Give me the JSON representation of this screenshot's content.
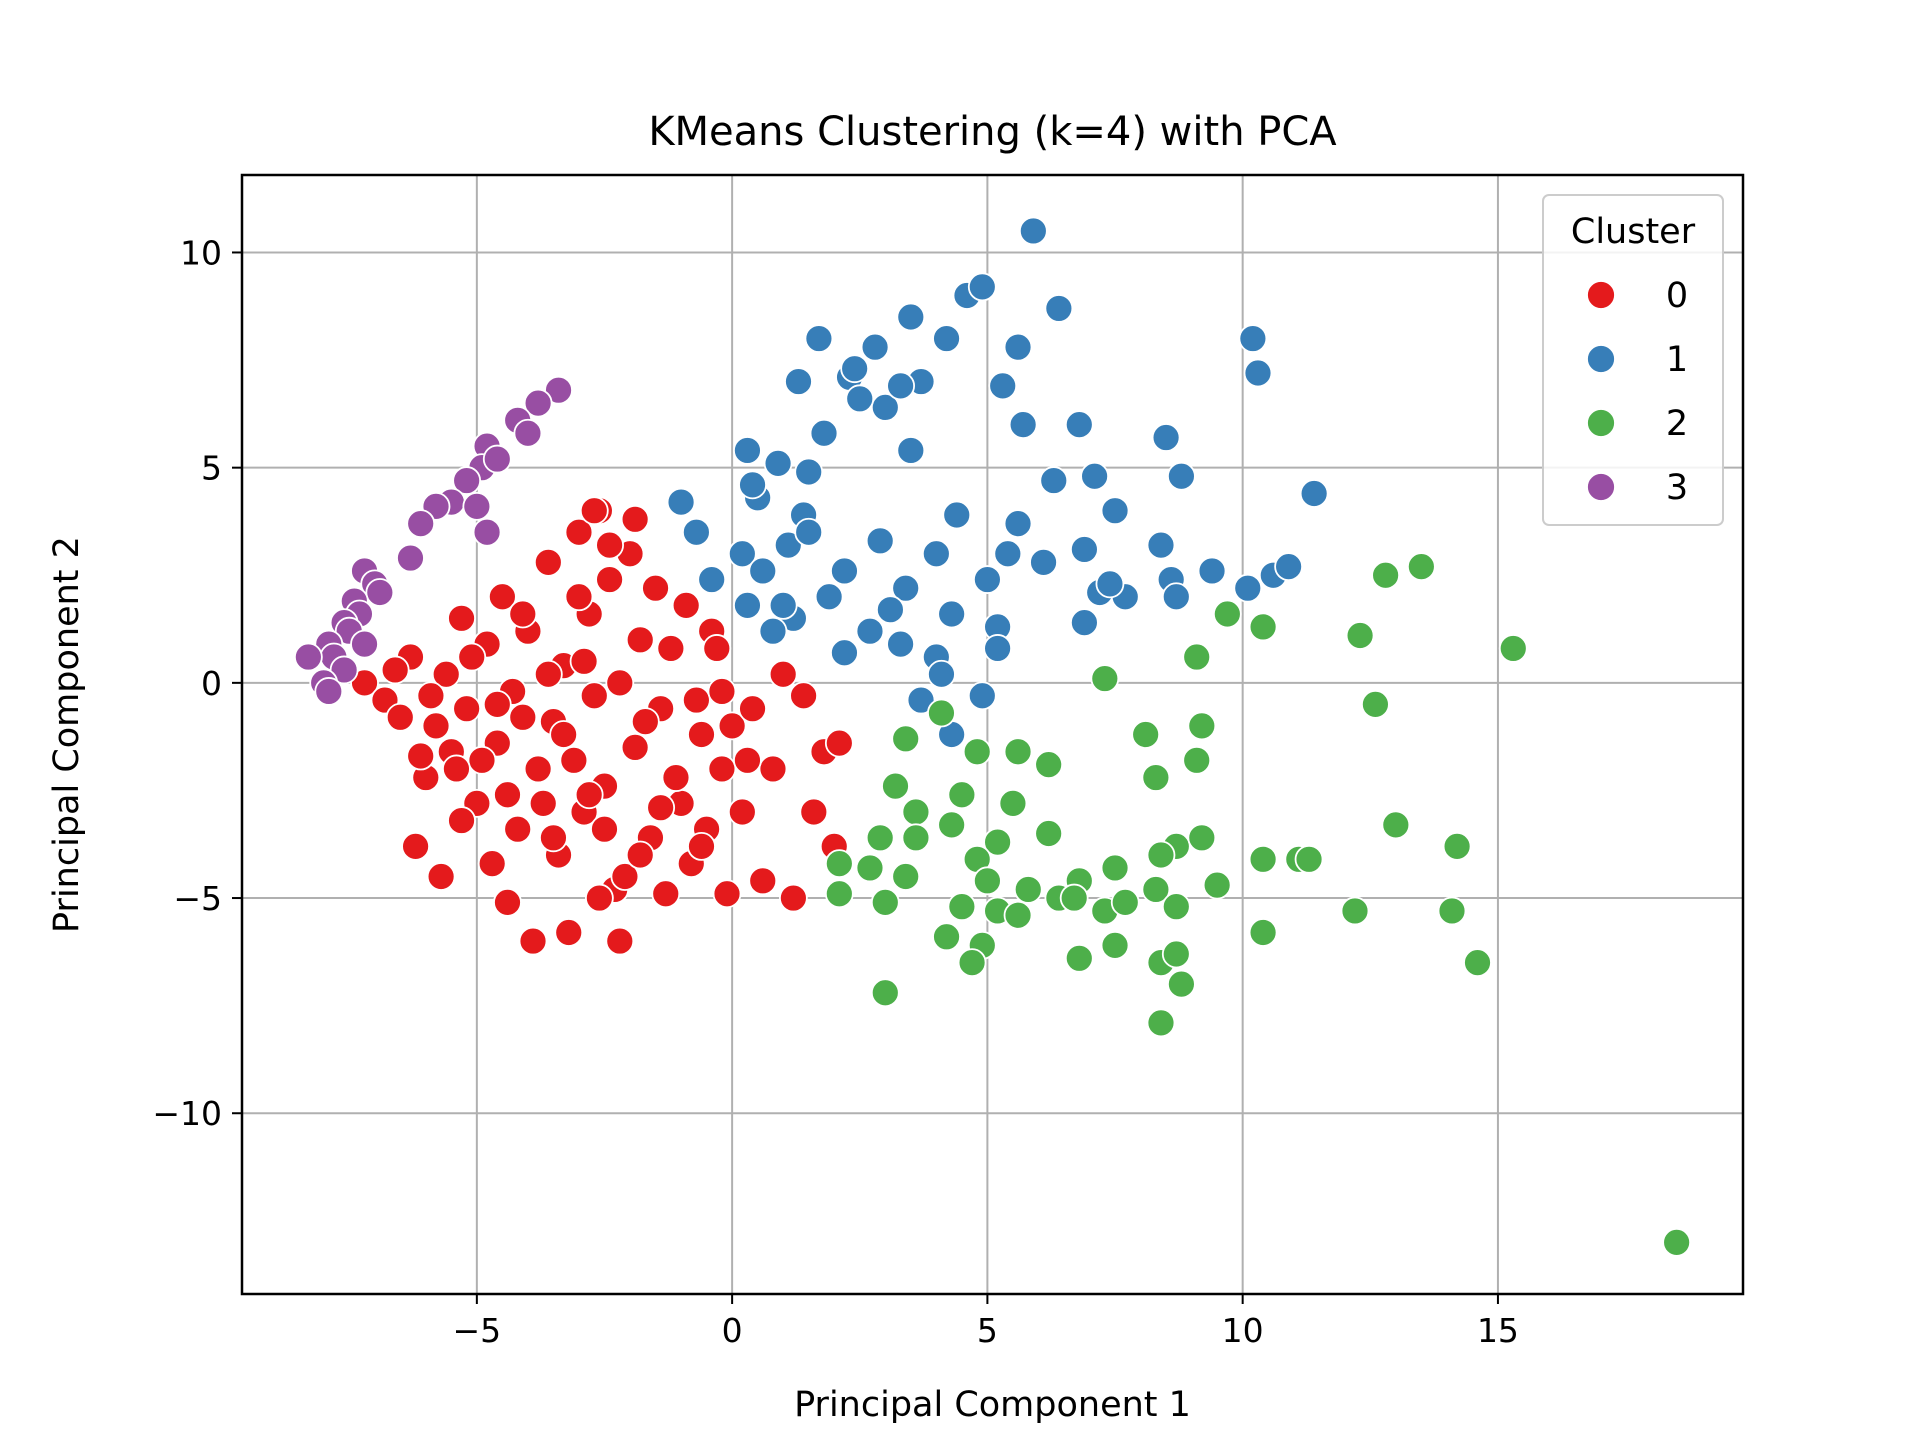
{
  "chart_data": {
    "type": "scatter",
    "title": "KMeans Clustering (k=4) with PCA",
    "xlabel": "Principal Component 1",
    "ylabel": "Principal Component 2",
    "xlim": [
      -9.6,
      19.8
    ],
    "ylim": [
      -14.2,
      11.8
    ],
    "xticks": [
      -5,
      0,
      5,
      10,
      15
    ],
    "yticks": [
      -10,
      -5,
      0,
      5,
      10
    ],
    "xtick_labels": [
      "−5",
      "0",
      "5",
      "10",
      "15"
    ],
    "ytick_labels": [
      "−10",
      "−5",
      "0",
      "5",
      "10"
    ],
    "grid": true,
    "legend": {
      "title": "Cluster",
      "placement": "top-right"
    },
    "series": [
      {
        "name": "0",
        "color": "#e41a1c",
        "points": [
          [
            -7.2,
            0.0
          ],
          [
            -6.8,
            -0.4
          ],
          [
            -6.5,
            -0.8
          ],
          [
            -6.3,
            0.6
          ],
          [
            -6.0,
            -2.2
          ],
          [
            -5.8,
            -1.0
          ],
          [
            -5.6,
            0.2
          ],
          [
            -5.5,
            -1.6
          ],
          [
            -5.3,
            1.5
          ],
          [
            -5.2,
            -0.6
          ],
          [
            -5.0,
            -2.8
          ],
          [
            -4.8,
            0.9
          ],
          [
            -4.6,
            -1.4
          ],
          [
            -4.5,
            2.0
          ],
          [
            -4.3,
            -0.2
          ],
          [
            -4.2,
            -3.4
          ],
          [
            -4.0,
            1.2
          ],
          [
            -3.8,
            -2.0
          ],
          [
            -3.6,
            2.8
          ],
          [
            -3.5,
            -0.9
          ],
          [
            -3.4,
            -4.0
          ],
          [
            -3.3,
            0.4
          ],
          [
            -3.1,
            -1.8
          ],
          [
            -3.0,
            3.5
          ],
          [
            -2.9,
            -3.0
          ],
          [
            -2.8,
            1.6
          ],
          [
            -2.7,
            -0.3
          ],
          [
            -2.6,
            4.0
          ],
          [
            -2.5,
            -2.4
          ],
          [
            -2.4,
            2.4
          ],
          [
            -2.3,
            -4.8
          ],
          [
            -2.2,
            0.0
          ],
          [
            -2.0,
            3.0
          ],
          [
            -1.9,
            -1.5
          ],
          [
            -1.8,
            1.0
          ],
          [
            -1.6,
            -3.6
          ],
          [
            -1.5,
            2.2
          ],
          [
            -1.4,
            -0.6
          ],
          [
            -1.2,
            0.8
          ],
          [
            -1.0,
            -2.8
          ],
          [
            -0.9,
            1.8
          ],
          [
            -0.8,
            -4.2
          ],
          [
            -0.7,
            -0.4
          ],
          [
            -0.5,
            -3.4
          ],
          [
            -0.4,
            1.2
          ],
          [
            -0.2,
            -2.0
          ],
          [
            0.0,
            -1.0
          ],
          [
            0.2,
            -3.0
          ],
          [
            0.4,
            -0.6
          ],
          [
            0.6,
            -4.6
          ],
          [
            0.8,
            -2.0
          ],
          [
            1.0,
            0.2
          ],
          [
            1.2,
            -5.0
          ],
          [
            1.4,
            -0.3
          ],
          [
            1.6,
            -3.0
          ],
          [
            1.8,
            -1.6
          ],
          [
            2.0,
            -3.8
          ],
          [
            2.1,
            -1.4
          ],
          [
            -6.2,
            -3.8
          ],
          [
            -5.7,
            -4.5
          ],
          [
            -4.4,
            -5.1
          ],
          [
            -3.9,
            -6.0
          ],
          [
            -3.2,
            -5.8
          ],
          [
            -2.6,
            -5.0
          ],
          [
            -2.2,
            -6.0
          ],
          [
            -1.3,
            -4.9
          ],
          [
            -0.1,
            -4.9
          ],
          [
            -4.7,
            -4.2
          ],
          [
            -3.7,
            -2.8
          ],
          [
            -2.1,
            -4.5
          ],
          [
            -1.1,
            -2.2
          ],
          [
            -0.3,
            0.8
          ],
          [
            -6.6,
            0.3
          ],
          [
            -5.9,
            -0.3
          ],
          [
            -5.1,
            0.6
          ],
          [
            -4.9,
            -1.8
          ],
          [
            -4.1,
            -0.8
          ],
          [
            -3.3,
            -1.2
          ],
          [
            -2.8,
            -2.6
          ],
          [
            -1.7,
            -0.9
          ],
          [
            -2.9,
            0.5
          ],
          [
            -3.6,
            0.2
          ],
          [
            -4.6,
            -0.5
          ],
          [
            -5.4,
            -2.0
          ],
          [
            -6.1,
            -1.7
          ],
          [
            -2.4,
            3.2
          ],
          [
            -1.9,
            3.8
          ],
          [
            -2.7,
            4.0
          ],
          [
            -3.0,
            2.0
          ],
          [
            -4.1,
            1.6
          ],
          [
            -0.6,
            -1.2
          ],
          [
            0.3,
            -1.8
          ],
          [
            -0.2,
            -0.2
          ],
          [
            -1.4,
            -2.9
          ],
          [
            -2.5,
            -3.4
          ],
          [
            -3.5,
            -3.6
          ],
          [
            -4.4,
            -2.6
          ],
          [
            -5.3,
            -3.2
          ],
          [
            -1.8,
            -4.0
          ],
          [
            -0.6,
            -3.8
          ]
        ]
      },
      {
        "name": "1",
        "color": "#377eb8",
        "points": [
          [
            5.9,
            10.5
          ],
          [
            4.6,
            9.0
          ],
          [
            4.9,
            9.2
          ],
          [
            6.4,
            8.7
          ],
          [
            3.5,
            8.5
          ],
          [
            1.7,
            8.0
          ],
          [
            2.8,
            7.8
          ],
          [
            4.2,
            8.0
          ],
          [
            1.3,
            7.0
          ],
          [
            2.3,
            7.1
          ],
          [
            3.0,
            6.4
          ],
          [
            3.7,
            7.0
          ],
          [
            5.3,
            6.9
          ],
          [
            5.6,
            7.8
          ],
          [
            6.8,
            6.0
          ],
          [
            10.2,
            8.0
          ],
          [
            10.3,
            7.2
          ],
          [
            1.8,
            5.8
          ],
          [
            0.3,
            5.4
          ],
          [
            0.9,
            5.1
          ],
          [
            1.5,
            4.9
          ],
          [
            3.5,
            5.4
          ],
          [
            6.3,
            4.7
          ],
          [
            7.1,
            4.8
          ],
          [
            8.8,
            4.8
          ],
          [
            11.4,
            4.4
          ],
          [
            -1.0,
            4.2
          ],
          [
            0.5,
            4.3
          ],
          [
            1.4,
            3.9
          ],
          [
            2.5,
            6.6
          ],
          [
            4.4,
            3.9
          ],
          [
            5.6,
            3.7
          ],
          [
            7.5,
            4.0
          ],
          [
            8.5,
            5.7
          ],
          [
            -0.7,
            3.5
          ],
          [
            0.2,
            3.0
          ],
          [
            1.1,
            3.2
          ],
          [
            2.2,
            2.6
          ],
          [
            2.9,
            3.3
          ],
          [
            4.0,
            3.0
          ],
          [
            5.4,
            3.0
          ],
          [
            6.9,
            3.1
          ],
          [
            8.4,
            3.2
          ],
          [
            9.4,
            2.6
          ],
          [
            10.6,
            2.5
          ],
          [
            10.9,
            2.7
          ],
          [
            -0.4,
            2.4
          ],
          [
            0.6,
            2.6
          ],
          [
            1.9,
            2.0
          ],
          [
            3.4,
            2.2
          ],
          [
            5.0,
            2.4
          ],
          [
            6.1,
            2.8
          ],
          [
            7.2,
            2.1
          ],
          [
            8.6,
            2.4
          ],
          [
            10.1,
            2.2
          ],
          [
            0.3,
            1.8
          ],
          [
            1.2,
            1.5
          ],
          [
            2.7,
            1.2
          ],
          [
            3.1,
            1.7
          ],
          [
            4.3,
            1.6
          ],
          [
            5.2,
            1.3
          ],
          [
            6.9,
            1.4
          ],
          [
            7.7,
            2.0
          ],
          [
            8.7,
            2.0
          ],
          [
            0.8,
            1.2
          ],
          [
            2.2,
            0.7
          ],
          [
            3.3,
            0.9
          ],
          [
            4.0,
            0.6
          ],
          [
            5.2,
            0.8
          ],
          [
            4.1,
            0.2
          ],
          [
            4.9,
            -0.3
          ],
          [
            3.7,
            -0.4
          ],
          [
            4.3,
            -1.2
          ],
          [
            1.5,
            3.5
          ],
          [
            0.4,
            4.6
          ],
          [
            2.4,
            7.3
          ],
          [
            3.3,
            6.9
          ],
          [
            5.7,
            6.0
          ],
          [
            7.4,
            2.3
          ],
          [
            1.0,
            1.8
          ]
        ]
      },
      {
        "name": "2",
        "color": "#4daf4a",
        "points": [
          [
            18.5,
            -13.0
          ],
          [
            15.3,
            0.8
          ],
          [
            13.5,
            2.7
          ],
          [
            12.8,
            2.5
          ],
          [
            12.3,
            1.1
          ],
          [
            12.6,
            -0.5
          ],
          [
            10.4,
            1.3
          ],
          [
            9.7,
            1.6
          ],
          [
            9.1,
            0.6
          ],
          [
            7.3,
            0.1
          ],
          [
            4.1,
            -0.7
          ],
          [
            3.4,
            -1.3
          ],
          [
            8.1,
            -1.2
          ],
          [
            9.2,
            -1.0
          ],
          [
            8.3,
            -2.2
          ],
          [
            9.1,
            -1.8
          ],
          [
            6.2,
            -1.9
          ],
          [
            5.6,
            -1.6
          ],
          [
            4.8,
            -1.6
          ],
          [
            3.2,
            -2.4
          ],
          [
            4.5,
            -2.6
          ],
          [
            5.5,
            -2.8
          ],
          [
            3.6,
            -3.0
          ],
          [
            4.3,
            -3.3
          ],
          [
            2.9,
            -3.6
          ],
          [
            3.6,
            -3.6
          ],
          [
            5.2,
            -3.7
          ],
          [
            6.2,
            -3.5
          ],
          [
            8.7,
            -3.8
          ],
          [
            9.2,
            -3.6
          ],
          [
            13.0,
            -3.3
          ],
          [
            14.2,
            -3.8
          ],
          [
            8.4,
            -4.0
          ],
          [
            10.4,
            -4.1
          ],
          [
            11.1,
            -4.1
          ],
          [
            11.3,
            -4.1
          ],
          [
            2.1,
            -4.2
          ],
          [
            2.7,
            -4.3
          ],
          [
            3.4,
            -4.5
          ],
          [
            4.8,
            -4.1
          ],
          [
            5.0,
            -4.6
          ],
          [
            5.8,
            -4.8
          ],
          [
            6.4,
            -5.0
          ],
          [
            6.8,
            -4.6
          ],
          [
            7.5,
            -4.3
          ],
          [
            8.3,
            -4.8
          ],
          [
            9.5,
            -4.7
          ],
          [
            2.1,
            -4.9
          ],
          [
            3.0,
            -5.1
          ],
          [
            4.5,
            -5.2
          ],
          [
            5.2,
            -5.3
          ],
          [
            6.7,
            -5.0
          ],
          [
            7.3,
            -5.3
          ],
          [
            7.7,
            -5.1
          ],
          [
            8.7,
            -5.2
          ],
          [
            10.4,
            -5.8
          ],
          [
            12.2,
            -5.3
          ],
          [
            14.1,
            -5.3
          ],
          [
            4.2,
            -5.9
          ],
          [
            4.9,
            -6.1
          ],
          [
            6.8,
            -6.4
          ],
          [
            7.5,
            -6.1
          ],
          [
            8.4,
            -6.5
          ],
          [
            8.7,
            -6.3
          ],
          [
            14.6,
            -6.5
          ],
          [
            4.7,
            -6.5
          ],
          [
            8.8,
            -7.0
          ],
          [
            3.0,
            -7.2
          ],
          [
            8.4,
            -7.9
          ],
          [
            5.6,
            -5.4
          ]
        ]
      },
      {
        "name": "3",
        "color": "#984ea3",
        "points": [
          [
            -3.4,
            6.8
          ],
          [
            -3.8,
            6.5
          ],
          [
            -4.2,
            6.1
          ],
          [
            -4.0,
            5.8
          ],
          [
            -4.8,
            5.5
          ],
          [
            -4.9,
            5.0
          ],
          [
            -5.2,
            4.7
          ],
          [
            -5.5,
            4.2
          ],
          [
            -5.0,
            4.1
          ],
          [
            -5.8,
            4.1
          ],
          [
            -6.1,
            3.7
          ],
          [
            -4.8,
            3.5
          ],
          [
            -6.3,
            2.9
          ],
          [
            -7.2,
            2.6
          ],
          [
            -7.0,
            2.3
          ],
          [
            -6.9,
            2.1
          ],
          [
            -7.4,
            1.9
          ],
          [
            -7.3,
            1.6
          ],
          [
            -7.6,
            1.4
          ],
          [
            -7.5,
            1.2
          ],
          [
            -7.9,
            0.9
          ],
          [
            -7.8,
            0.6
          ],
          [
            -8.3,
            0.6
          ],
          [
            -7.6,
            0.3
          ],
          [
            -8.0,
            0.0
          ],
          [
            -7.9,
            -0.2
          ],
          [
            -7.2,
            0.9
          ],
          [
            -4.6,
            5.2
          ]
        ]
      }
    ]
  }
}
